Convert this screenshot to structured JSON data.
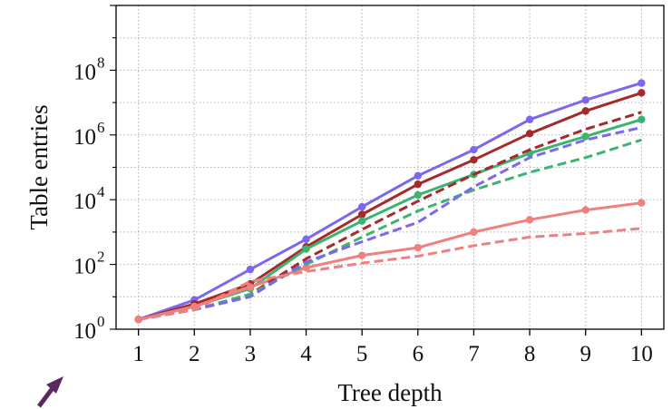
{
  "chart_data": {
    "type": "line",
    "title": "",
    "xlabel": "Tree depth",
    "ylabel": "Table entries",
    "x": [
      1,
      2,
      3,
      4,
      5,
      6,
      7,
      8,
      9,
      10
    ],
    "xlim": [
      0.6,
      10.4
    ],
    "ylim_log10": [
      0,
      10
    ],
    "yscale": "log",
    "x_ticks": [
      "1",
      "2",
      "3",
      "4",
      "5",
      "6",
      "7",
      "8",
      "9",
      "10"
    ],
    "y_ticks": [
      {
        "base": "10",
        "exp": "0",
        "value": 1
      },
      {
        "base": "10",
        "exp": "2",
        "value": 100
      },
      {
        "base": "10",
        "exp": "4",
        "value": 10000
      },
      {
        "base": "10",
        "exp": "6",
        "value": 1000000
      },
      {
        "base": "10",
        "exp": "8",
        "value": 100000000
      }
    ],
    "grid": true,
    "series": [
      {
        "color": "#7b68ee",
        "style": "solid",
        "markers": true,
        "values": [
          2,
          8,
          70,
          600,
          6000,
          55000,
          350000,
          3000000,
          12000000,
          40000000
        ]
      },
      {
        "color": "#a52a2a",
        "style": "solid",
        "markers": true,
        "values": [
          2,
          6,
          25,
          350,
          3500,
          30000,
          170000,
          1100000,
          5500000,
          20000000
        ]
      },
      {
        "color": "#3cb371",
        "style": "solid",
        "markers": true,
        "values": [
          2,
          5,
          18,
          300,
          2200,
          14000,
          60000,
          270000,
          900000,
          3000000
        ]
      },
      {
        "color": "#f08080",
        "style": "solid",
        "markers": true,
        "values": [
          2,
          5,
          20,
          80,
          190,
          330,
          1000,
          2400,
          4800,
          8000
        ]
      },
      {
        "color": "#a52a2a",
        "style": "dashed",
        "markers": false,
        "values": [
          2,
          4,
          12,
          150,
          1200,
          9000,
          60000,
          350000,
          1500000,
          5000000
        ]
      },
      {
        "color": "#3cb371",
        "style": "dashed",
        "markers": false,
        "values": [
          2,
          4,
          12,
          100,
          700,
          4500,
          20000,
          70000,
          200000,
          700000
        ]
      },
      {
        "color": "#7b68ee",
        "style": "dashed",
        "markers": false,
        "values": [
          2,
          4,
          10,
          120,
          500,
          2000,
          25000,
          200000,
          700000,
          1700000
        ]
      },
      {
        "color": "#f08080",
        "style": "dashed",
        "markers": false,
        "values": [
          2,
          4,
          30,
          60,
          110,
          180,
          380,
          700,
          900,
          1300
        ]
      }
    ],
    "annotation": {
      "icon": "arrow-icon",
      "color": "#5a2a5e"
    }
  }
}
